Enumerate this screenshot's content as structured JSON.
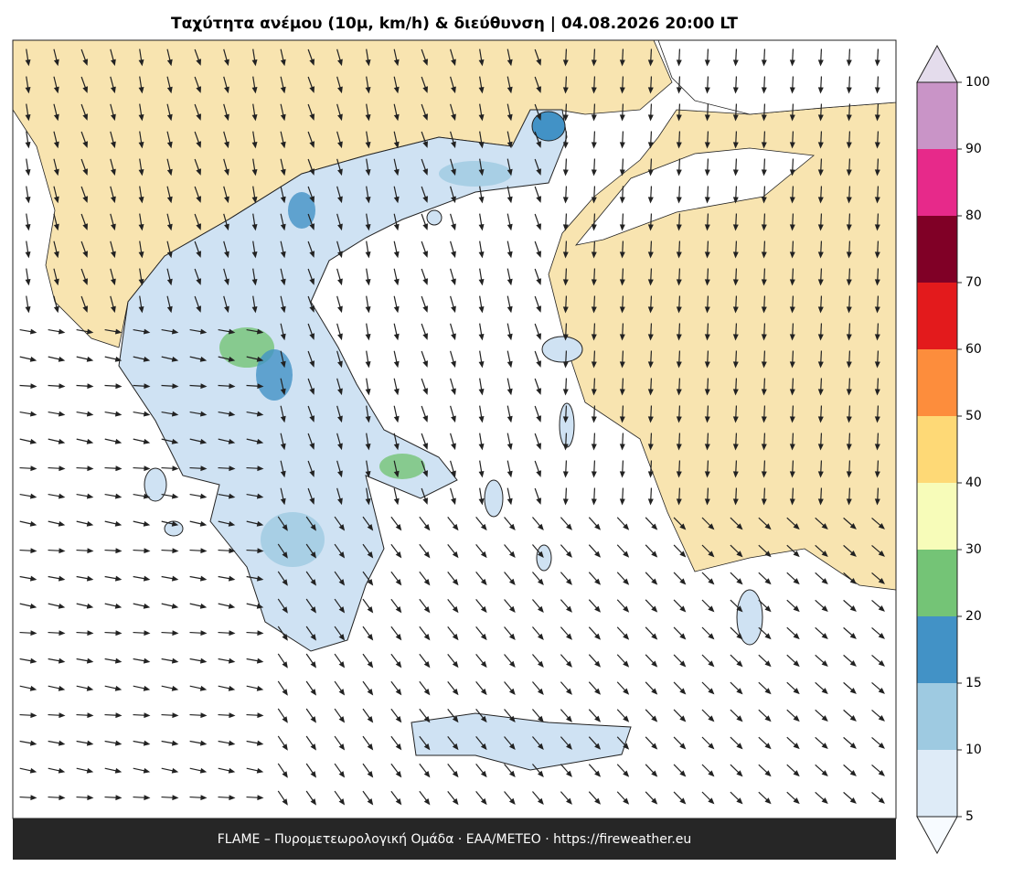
{
  "title": "Ταχύτητα ανέμου (10μ, km/h) & διεύθυνση  |  04.08.2026 20:00 LT",
  "footer": "FLAME – Πυρομετεωρολογική Ομάδα · ΕΑΑ/METEO · https://fireweather.eu",
  "colorbar": {
    "ticks": [
      5,
      10,
      15,
      20,
      30,
      40,
      50,
      60,
      70,
      80,
      90,
      100
    ],
    "colors": [
      "#deebf7",
      "#9ecae1",
      "#4292c6",
      "#74c476",
      "#f7fcb9",
      "#fed976",
      "#fd8d3c",
      "#e31a1c",
      "#800026",
      "#e7298a",
      "#c994c7"
    ],
    "under_color": "#f7fbff",
    "over_color": "#e4dcec"
  }
}
